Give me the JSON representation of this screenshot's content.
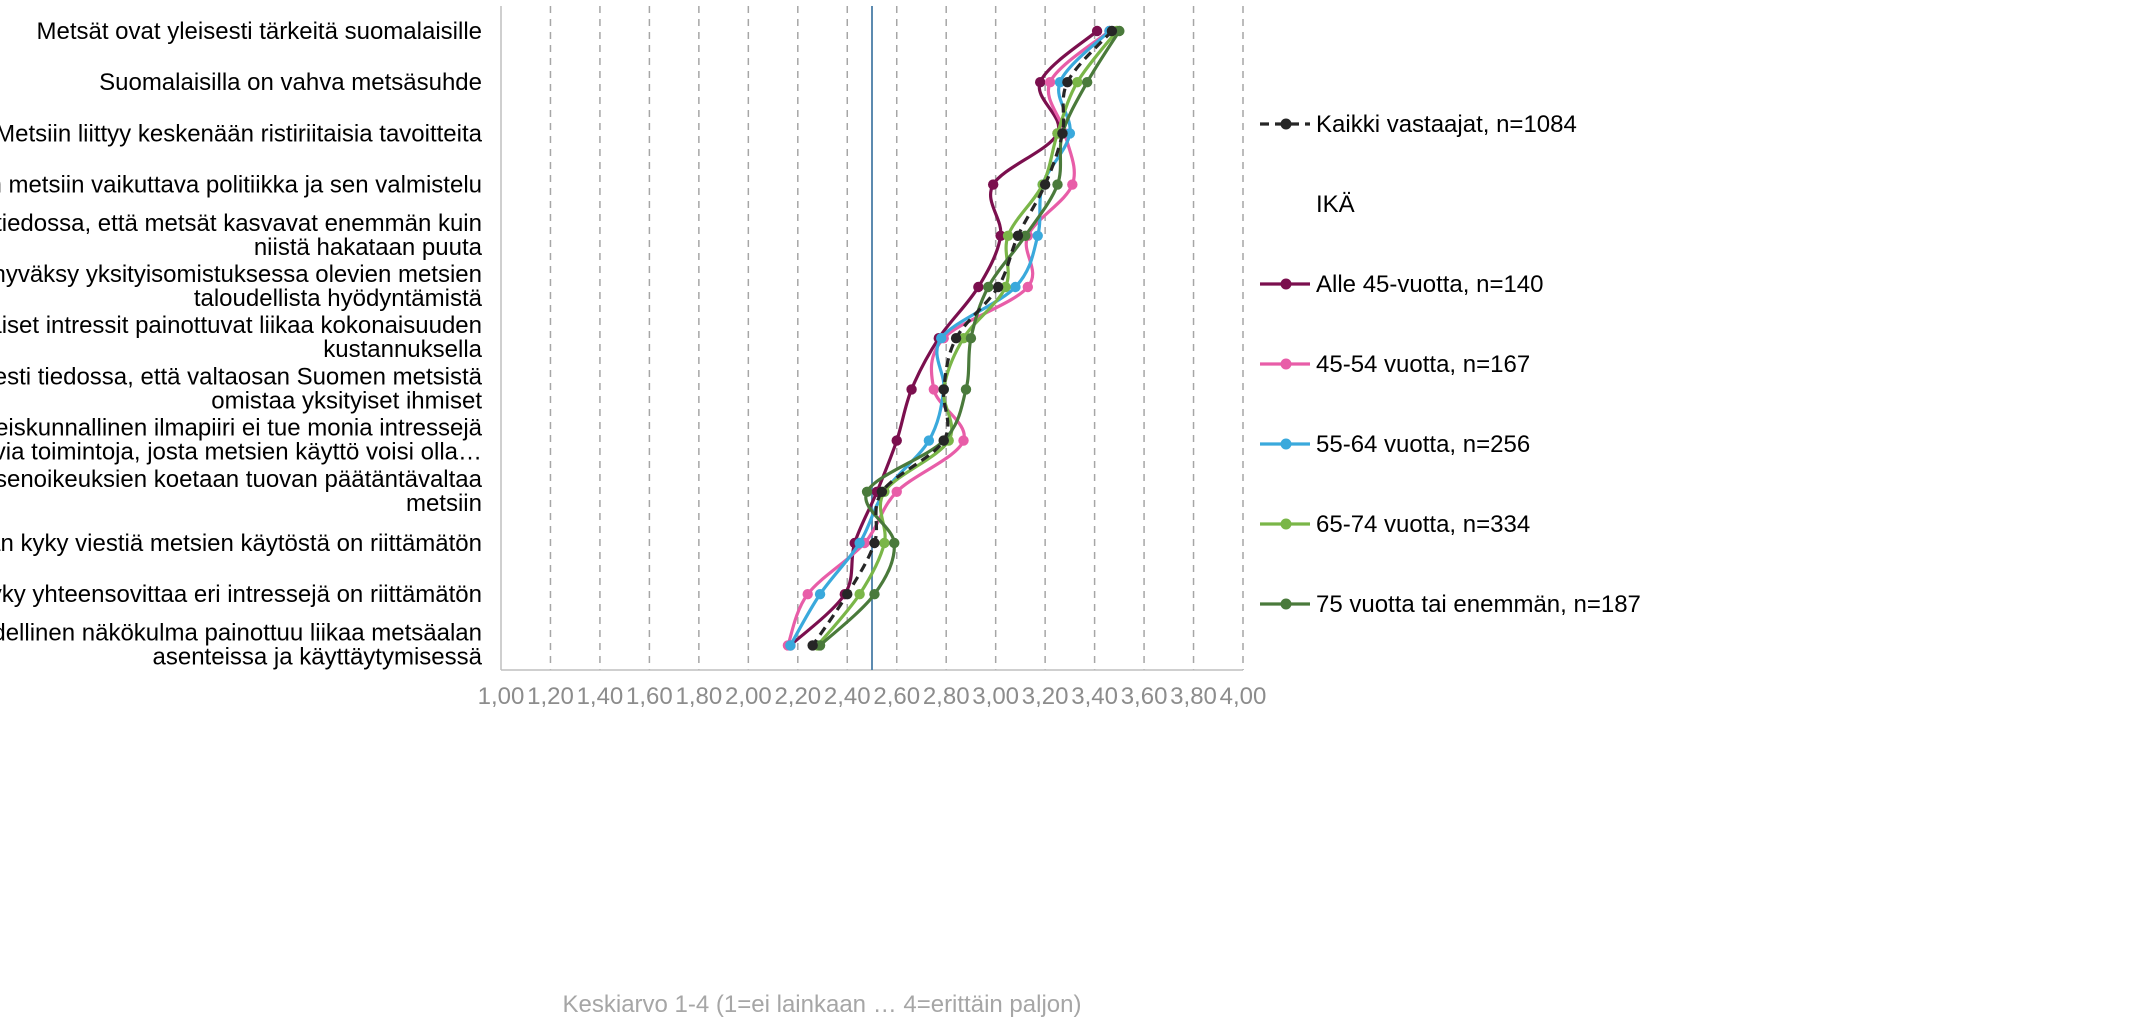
{
  "chart_data": {
    "type": "line",
    "orientation": "horizontal-categories",
    "xlabel": "Keskiarvo 1-4 (1=ei lainkaan … 4=erittäin paljon)",
    "xlim": [
      1.0,
      4.0
    ],
    "xticks": [
      "1,00",
      "1,20",
      "1,40",
      "1,60",
      "1,80",
      "2,00",
      "2,20",
      "2,40",
      "2,60",
      "2,80",
      "3,00",
      "3,20",
      "3,40",
      "3,60",
      "3,80",
      "4,00"
    ],
    "grid": "vertical dashed",
    "reference_line": 2.5,
    "categories": [
      [
        "Metsät ovat yleisesti tärkeitä suomalaisille"
      ],
      [
        "Suomalaisilla on vahva metsäsuhde"
      ],
      [
        "Metsiin liittyy keskenään ristiriitaisia tavoitteita"
      ],
      [
        "EU:n metsiin vaikuttava politiikka ja sen valmistelu"
      ],
      [
        "Ei ole yleisesti tiedossa, että metsät kasvavat enemmän kuin",
        "niistä hakataan puuta"
      ],
      [
        "Kaikki eivät hyväksy yksityisomistuksessa olevien metsien",
        "taloudellista hyödyntämistä"
      ],
      [
        "Yksittäiset intressit painottuvat liikaa kokonaisuuden",
        "kustannuksella"
      ],
      [
        "Ei ole yleisesti tiedossa, että valtaosan Suomen metsistä",
        "omistaa yksityiset ihmiset"
      ],
      [
        "Nykyinen yhteiskunnallinen ilmapiiri ei tue monia intressejä",
        "yhteensovittavia toimintoja, josta metsien käyttö voisi olla…"
      ],
      [
        "Laajojen jokaisenoikeuksien koetaan tuovan päätäntävaltaa",
        "metsiin"
      ],
      [
        "Metsäalan kyky viestiä metsien käytöstä on riittämätön"
      ],
      [
        "Metsäalan kyky yhteensovittaa eri intressejä on riittämätön"
      ],
      [
        "Taloudellinen näkökulma painottuu liikaa metsäalan",
        "asenteissa ja käyttäytymisessä"
      ]
    ],
    "legend": {
      "position": "right",
      "heading": "IKÄ"
    },
    "series": [
      {
        "name": "Kaikki vastaajat, n=1084",
        "color": "#262626",
        "dashed": true,
        "values": [
          3.47,
          3.29,
          3.27,
          3.2,
          3.09,
          3.01,
          2.84,
          2.79,
          2.79,
          2.54,
          2.51,
          2.4,
          2.26
        ]
      },
      {
        "name": "Alle 45-vuotta, n=140",
        "color": "#7b0f4e",
        "dashed": false,
        "values": [
          3.41,
          3.18,
          3.25,
          2.99,
          3.02,
          2.93,
          2.77,
          2.66,
          2.6,
          2.52,
          2.43,
          2.39,
          2.17
        ]
      },
      {
        "name": "45-54 vuotta, n=167",
        "color": "#e85da8",
        "dashed": false,
        "values": [
          3.46,
          3.22,
          3.28,
          3.31,
          3.13,
          3.13,
          2.79,
          2.75,
          2.87,
          2.6,
          2.47,
          2.24,
          2.16
        ]
      },
      {
        "name": "55-64 vuotta, n=256",
        "color": "#3aa9dc",
        "dashed": false,
        "values": [
          3.46,
          3.26,
          3.3,
          3.19,
          3.17,
          3.08,
          2.78,
          2.79,
          2.73,
          2.55,
          2.45,
          2.29,
          2.17
        ]
      },
      {
        "name": "65-74 vuotta, n=334",
        "color": "#7ab648",
        "dashed": false,
        "values": [
          3.49,
          3.33,
          3.25,
          3.19,
          3.05,
          3.04,
          2.87,
          2.79,
          2.81,
          2.55,
          2.55,
          2.45,
          2.28
        ]
      },
      {
        "name": "75 vuotta tai enemmän, n=187",
        "color": "#4a7a3b",
        "dashed": false,
        "values": [
          3.5,
          3.37,
          3.27,
          3.25,
          3.12,
          2.97,
          2.9,
          2.88,
          2.79,
          2.48,
          2.59,
          2.51,
          2.29
        ]
      }
    ]
  }
}
